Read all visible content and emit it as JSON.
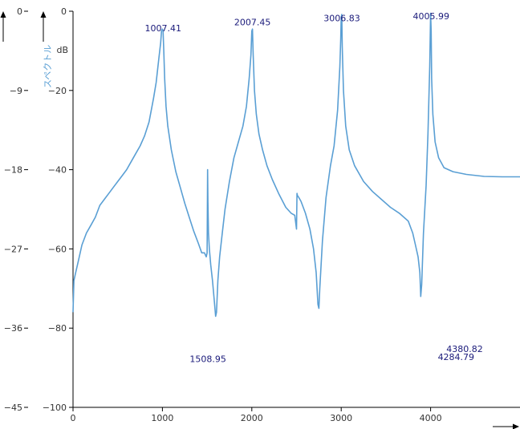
{
  "colors": {
    "series": "#5a9fd4",
    "peak_label": "#1a1a7a",
    "axis": "#000000",
    "tick_text": "#333333"
  },
  "chart_data": {
    "type": "line",
    "xlim": [
      0,
      5000
    ],
    "ylim": [
      -100,
      0
    ],
    "ylim_secondary": [
      -45,
      0
    ],
    "x_ticks": [
      "0",
      "1000",
      "2000",
      "3000",
      "4000"
    ],
    "y_ticks": [
      "0",
      "−20",
      "−40",
      "−60",
      "−80",
      "−100"
    ],
    "y2_ticks": [
      "0",
      "−9",
      "−18",
      "−27",
      "−36",
      "−45"
    ],
    "xlabel": "",
    "ylabel": "dB",
    "ylabel_secondary": "スペクトル",
    "grid": false,
    "series": [
      {
        "x": [
          0,
          10,
          30,
          60,
          100,
          150,
          200,
          250,
          300,
          350,
          400,
          450,
          500,
          550,
          600,
          650,
          700,
          750,
          800,
          850,
          900,
          930,
          960,
          980,
          990,
          1000,
          1007,
          1015,
          1025,
          1040,
          1060,
          1100,
          1150,
          1200,
          1250,
          1300,
          1350,
          1400,
          1440,
          1470,
          1490,
          1500,
          1505,
          1509,
          1515,
          1525,
          1540,
          1560,
          1580,
          1595,
          1605,
          1620,
          1640,
          1670,
          1700,
          1750,
          1800,
          1850,
          1900,
          1940,
          1970,
          1990,
          2000,
          2007,
          2015,
          2030,
          2050,
          2080,
          2120,
          2170,
          2230,
          2300,
          2380,
          2440,
          2480,
          2500,
          2505,
          2510,
          2525,
          2550,
          2600,
          2650,
          2690,
          2720,
          2740,
          2750,
          2760,
          2790,
          2830,
          2880,
          2920,
          2960,
          2985,
          2995,
          3000,
          3006,
          3012,
          3025,
          3050,
          3090,
          3150,
          3250,
          3350,
          3450,
          3550,
          3650,
          3750,
          3800,
          3830,
          3860,
          3880,
          3890,
          3900,
          3920,
          3950,
          3970,
          3990,
          4000,
          4006,
          4012,
          4025,
          4050,
          4090,
          4150,
          4250,
          4400,
          4600,
          4800,
          5000
        ],
        "y": [
          -76,
          -68,
          -66,
          -63,
          -59,
          -56,
          -54,
          -52,
          -49,
          -47.5,
          -46,
          -44.5,
          -43,
          -41.5,
          -40,
          -38,
          -36,
          -34,
          -31.5,
          -28,
          -22,
          -18,
          -12,
          -8,
          -5,
          -4.5,
          -5,
          -10,
          -17,
          -24,
          -29,
          -35,
          -40.5,
          -44.5,
          -48.5,
          -52,
          -55.5,
          -58.5,
          -61,
          -61,
          -62,
          -61,
          -40,
          -48,
          -56,
          -60,
          -64,
          -68,
          -73,
          -77,
          -76,
          -68,
          -62,
          -56,
          -50,
          -43,
          -37,
          -33,
          -29,
          -24,
          -17,
          -11,
          -5,
          -4.5,
          -11,
          -20,
          -26,
          -31,
          -35,
          -39,
          -42.5,
          -46,
          -49.5,
          -51,
          -51.5,
          -55,
          -46,
          -46.5,
          -47,
          -48,
          -51,
          -55,
          -60,
          -66,
          -74,
          -75,
          -70,
          -58,
          -47,
          -39,
          -34,
          -25,
          -14,
          -7,
          -1.5,
          -0.8,
          -9,
          -20,
          -29,
          -35,
          -39,
          -43,
          -45.5,
          -47.5,
          -49.5,
          -51,
          -53,
          -56,
          -59,
          -62,
          -66,
          -72,
          -69,
          -56,
          -44,
          -31,
          -14,
          -0.5,
          -5,
          -17,
          -26,
          -33,
          -37,
          -39.5,
          -40.5,
          -41.2,
          -41.7,
          -41.8,
          -41.8
        ]
      }
    ],
    "annotations": [
      {
        "text": "1007.41",
        "x": 1007.41,
        "y": -3
      },
      {
        "text": "2007.45",
        "x": 2007.45,
        "y": -1.5
      },
      {
        "text": "3006.83",
        "x": 3006.83,
        "y": -0.5
      },
      {
        "text": "4005.99",
        "x": 4005.99,
        "y": 0
      },
      {
        "text": "1508.95",
        "x": 1508.95,
        "y": -86.5
      },
      {
        "text": "4380.82",
        "x": 4380.82,
        "y": -84
      },
      {
        "text": "4284.79",
        "x": 4284.79,
        "y": -86
      }
    ]
  }
}
